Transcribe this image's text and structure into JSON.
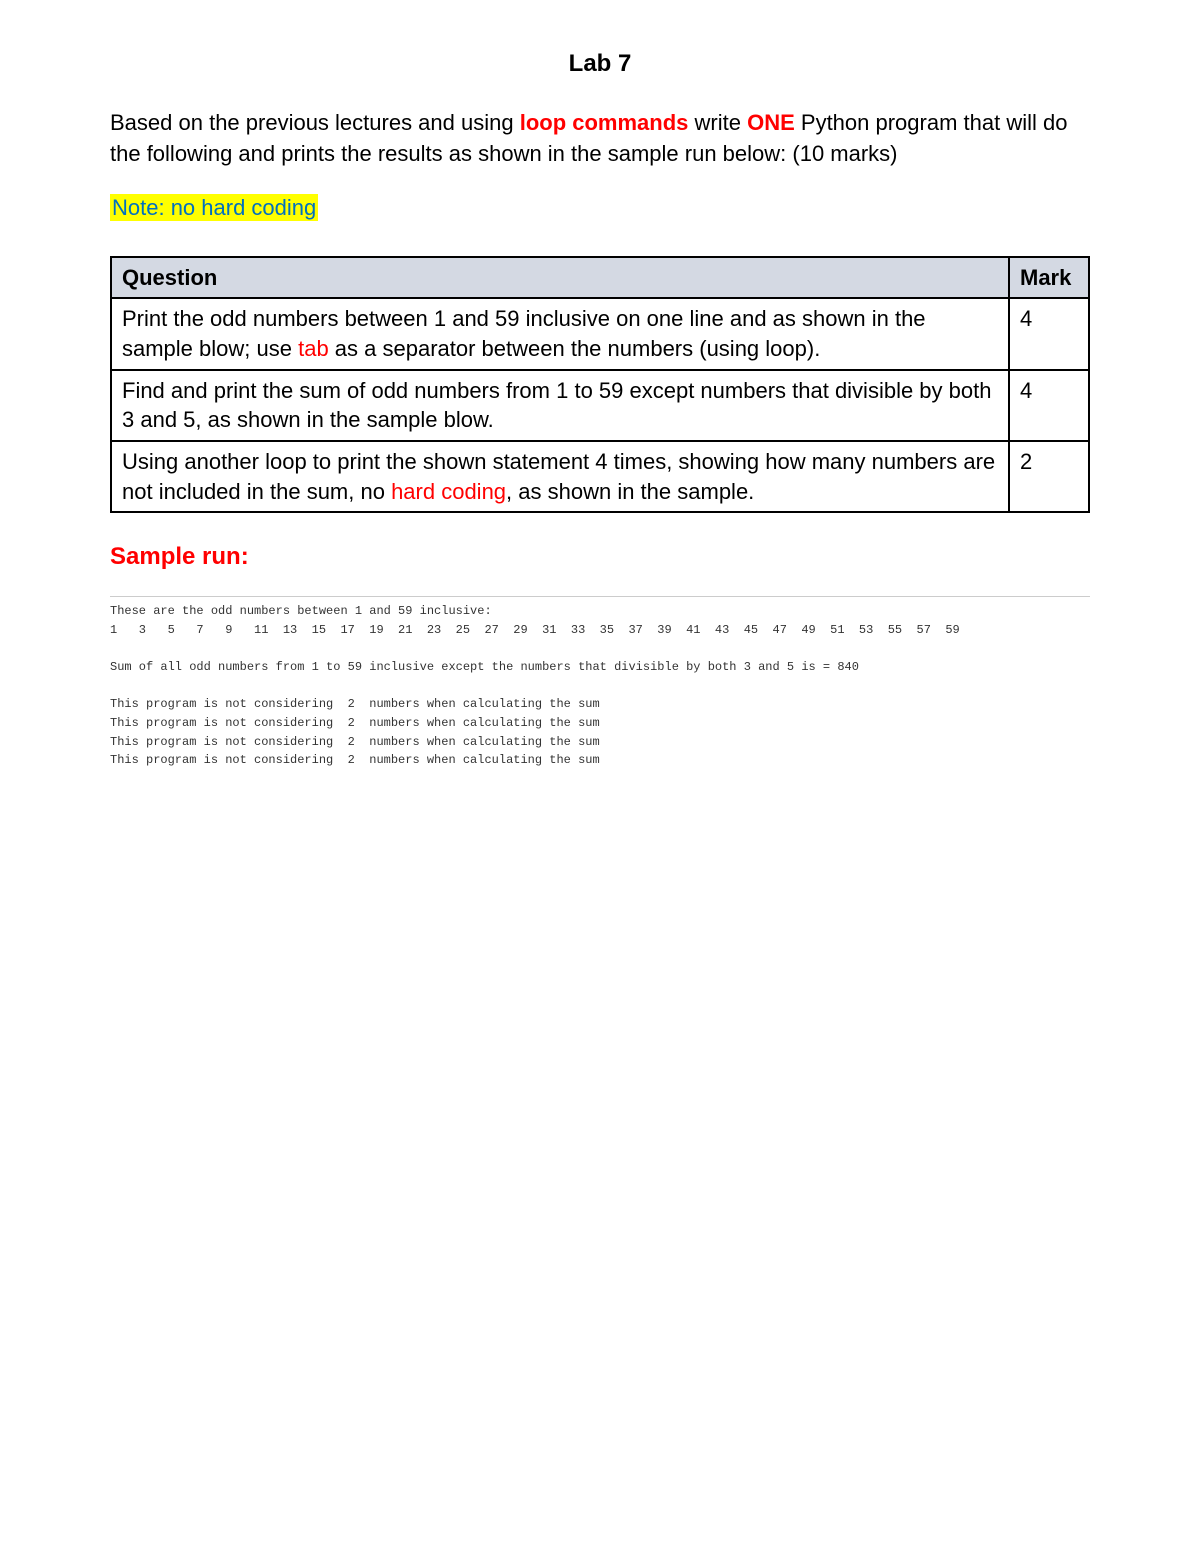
{
  "title": "Lab 7",
  "intro": {
    "prefix": "Based on the previous lectures and using ",
    "emph1": "loop commands",
    "mid": " write ",
    "emph2": "ONE",
    "suffix": " Python program that will do the following and prints the results as shown in the sample run below: (10 marks)"
  },
  "note_text": "Note: no hard coding",
  "table": {
    "header_q": "Question",
    "header_m": "Mark",
    "rows": [
      {
        "q_pre": "Print the odd numbers between 1 and 59 inclusive on one line and as shown in the sample blow; use ",
        "q_red": "tab",
        "q_post": " as a separator between the numbers (using loop).",
        "mark": "4"
      },
      {
        "q_pre": "Find and print the sum of odd numbers from 1 to 59 except numbers that divisible by both 3 and 5, as shown in the sample blow.",
        "q_red": "",
        "q_post": "",
        "mark": "4"
      },
      {
        "q_pre": "Using another loop to print the shown statement 4 times, showing how many numbers are not included in the sum, no ",
        "q_red": "hard coding",
        "q_post": ", as shown in the sample.",
        "mark": "2"
      }
    ]
  },
  "sample_header": "Sample run:",
  "output": {
    "line1": "These are the odd numbers between 1 and 59 inclusive:",
    "line2": "1   3   5   7   9   11  13  15  17  19  21  23  25  27  29  31  33  35  37  39  41  43  45  47  49  51  53  55  57  59",
    "blank1": "",
    "line3": "Sum of all odd numbers from 1 to 59 inclusive except the numbers that divisible by both 3 and 5 is = 840",
    "blank2": "",
    "line4": "This program is not considering  2  numbers when calculating the sum",
    "line5": "This program is not considering  2  numbers when calculating the sum",
    "line6": "This program is not considering  2  numbers when calculating the sum",
    "line7": "This program is not considering  2  numbers when calculating the sum"
  },
  "colors": {
    "red": "#ff0000",
    "highlight_bg": "#ffff00",
    "highlight_text": "#0070c0",
    "table_header_bg": "#d4d9e3",
    "border": "#000000",
    "bg": "#ffffff",
    "output_text": "#333333"
  },
  "typography": {
    "title_fontsize": 24,
    "body_fontsize": 22,
    "output_fontsize": 12,
    "output_font": "Courier New"
  }
}
